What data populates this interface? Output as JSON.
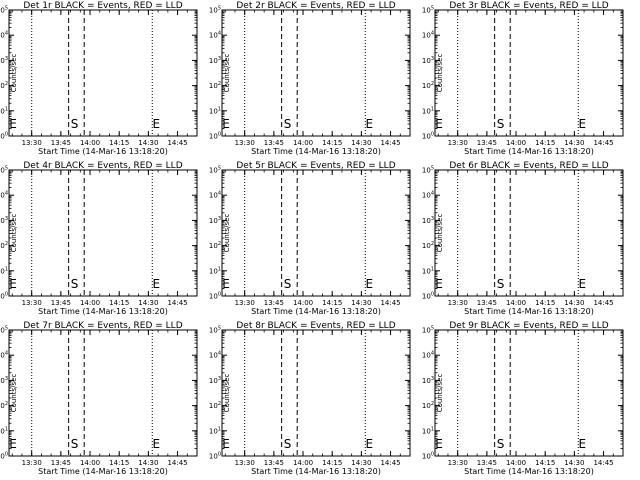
{
  "window": {
    "title": ""
  },
  "chart_data": [
    {
      "type": "line",
      "title": "Det 1r BLACK = Events, RED = LLD",
      "xlabel": "Start Time (14-Mar-16 13:18:20)",
      "ylabel": "Counts/sec",
      "x_ticks": [
        "13:30",
        "13:45",
        "14:00",
        "14:15",
        "14:30",
        "14:45"
      ],
      "y_ticks": [
        "10^0",
        "10^1",
        "10^2",
        "10^3",
        "10^4",
        "10^5"
      ],
      "ylim": [
        1,
        100000
      ],
      "xlim": [
        "13:18:20",
        "14:55"
      ],
      "y_scale": "log",
      "series": [],
      "vlines": {
        "dotted": [
          "13:30",
          "14:32",
          "14:55"
        ],
        "dashed": [
          "13:49",
          "13:57"
        ]
      },
      "markers": [
        {
          "text": "E",
          "x": "13:18:20"
        },
        {
          "text": "S",
          "x": "13:50"
        },
        {
          "text": "E",
          "x": "14:32"
        }
      ]
    },
    {
      "type": "line",
      "title": "Det 2r BLACK = Events, RED = LLD",
      "xlabel": "Start Time (14-Mar-16 13:18:20)",
      "ylabel": "Counts/sec",
      "x_ticks": [
        "13:30",
        "13:45",
        "14:00",
        "14:15",
        "14:30",
        "14:45"
      ],
      "y_ticks": [
        "10^0",
        "10^1",
        "10^2",
        "10^3",
        "10^4",
        "10^5"
      ],
      "ylim": [
        1,
        100000
      ],
      "xlim": [
        "13:18:20",
        "14:55"
      ],
      "y_scale": "log",
      "series": [],
      "vlines": {
        "dotted": [
          "13:30",
          "14:32",
          "14:55"
        ],
        "dashed": [
          "13:49",
          "13:57"
        ]
      },
      "markers": [
        {
          "text": "E",
          "x": "13:18:20"
        },
        {
          "text": "S",
          "x": "13:50"
        },
        {
          "text": "E",
          "x": "14:32"
        }
      ]
    },
    {
      "type": "line",
      "title": "Det 3r BLACK = Events, RED = LLD",
      "xlabel": "Start Time (14-Mar-16 13:18:20)",
      "ylabel": "Counts/sec",
      "x_ticks": [
        "13:30",
        "13:45",
        "14:00",
        "14:15",
        "14:30",
        "14:45"
      ],
      "y_ticks": [
        "10^0",
        "10^1",
        "10^2",
        "10^3",
        "10^4",
        "10^5"
      ],
      "ylim": [
        1,
        100000
      ],
      "xlim": [
        "13:18:20",
        "14:55"
      ],
      "y_scale": "log",
      "series": [],
      "vlines": {
        "dotted": [
          "13:30",
          "14:32",
          "14:55"
        ],
        "dashed": [
          "13:49",
          "13:57"
        ]
      },
      "markers": [
        {
          "text": "E",
          "x": "13:18:20"
        },
        {
          "text": "S",
          "x": "13:50"
        },
        {
          "text": "E",
          "x": "14:32"
        }
      ]
    },
    {
      "type": "line",
      "title": "Det 4r BLACK = Events, RED = LLD",
      "xlabel": "Start Time (14-Mar-16 13:18:20)",
      "ylabel": "Counts/sec",
      "x_ticks": [
        "13:30",
        "13:45",
        "14:00",
        "14:15",
        "14:30",
        "14:45"
      ],
      "y_ticks": [
        "10^0",
        "10^1",
        "10^2",
        "10^3",
        "10^4",
        "10^5"
      ],
      "ylim": [
        1,
        100000
      ],
      "xlim": [
        "13:18:20",
        "14:55"
      ],
      "y_scale": "log",
      "series": [],
      "vlines": {
        "dotted": [
          "13:30",
          "14:32",
          "14:55"
        ],
        "dashed": [
          "13:49",
          "13:57"
        ]
      },
      "markers": [
        {
          "text": "E",
          "x": "13:18:20"
        },
        {
          "text": "S",
          "x": "13:50"
        },
        {
          "text": "E",
          "x": "14:32"
        }
      ]
    },
    {
      "type": "line",
      "title": "Det 5r BLACK = Events, RED = LLD",
      "xlabel": "Start Time (14-Mar-16 13:18:20)",
      "ylabel": "Counts/sec",
      "x_ticks": [
        "13:30",
        "13:45",
        "14:00",
        "14:15",
        "14:30",
        "14:45"
      ],
      "y_ticks": [
        "10^0",
        "10^1",
        "10^2",
        "10^3",
        "10^4",
        "10^5"
      ],
      "ylim": [
        1,
        100000
      ],
      "xlim": [
        "13:18:20",
        "14:55"
      ],
      "y_scale": "log",
      "series": [],
      "vlines": {
        "dotted": [
          "13:30",
          "14:32",
          "14:55"
        ],
        "dashed": [
          "13:49",
          "13:57"
        ]
      },
      "markers": [
        {
          "text": "E",
          "x": "13:18:20"
        },
        {
          "text": "S",
          "x": "13:50"
        },
        {
          "text": "E",
          "x": "14:32"
        }
      ]
    },
    {
      "type": "line",
      "title": "Det 6r BLACK = Events, RED = LLD",
      "xlabel": "Start Time (14-Mar-16 13:18:20)",
      "ylabel": "Counts/sec",
      "x_ticks": [
        "13:30",
        "13:45",
        "14:00",
        "14:15",
        "14:30",
        "14:45"
      ],
      "y_ticks": [
        "10^0",
        "10^1",
        "10^2",
        "10^3",
        "10^4",
        "10^5"
      ],
      "ylim": [
        1,
        100000
      ],
      "xlim": [
        "13:18:20",
        "14:55"
      ],
      "y_scale": "log",
      "series": [],
      "vlines": {
        "dotted": [
          "13:30",
          "14:32",
          "14:55"
        ],
        "dashed": [
          "13:49",
          "13:57"
        ]
      },
      "markers": [
        {
          "text": "E",
          "x": "13:18:20"
        },
        {
          "text": "S",
          "x": "13:50"
        },
        {
          "text": "E",
          "x": "14:32"
        }
      ]
    },
    {
      "type": "line",
      "title": "Det 7r BLACK = Events, RED = LLD",
      "xlabel": "Start Time (14-Mar-16 13:18:20)",
      "ylabel": "Counts/sec",
      "x_ticks": [
        "13:30",
        "13:45",
        "14:00",
        "14:15",
        "14:30",
        "14:45"
      ],
      "y_ticks": [
        "10^0",
        "10^1",
        "10^2",
        "10^3",
        "10^4",
        "10^5"
      ],
      "ylim": [
        1,
        100000
      ],
      "xlim": [
        "13:18:20",
        "14:55"
      ],
      "y_scale": "log",
      "series": [],
      "vlines": {
        "dotted": [
          "13:30",
          "14:32",
          "14:55"
        ],
        "dashed": [
          "13:49",
          "13:57"
        ]
      },
      "markers": [
        {
          "text": "E",
          "x": "13:18:20"
        },
        {
          "text": "S",
          "x": "13:50"
        },
        {
          "text": "E",
          "x": "14:32"
        }
      ]
    },
    {
      "type": "line",
      "title": "Det 8r BLACK = Events, RED = LLD",
      "xlabel": "Start Time (14-Mar-16 13:18:20)",
      "ylabel": "Counts/sec",
      "x_ticks": [
        "13:30",
        "13:45",
        "14:00",
        "14:15",
        "14:30",
        "14:45"
      ],
      "y_ticks": [
        "10^0",
        "10^1",
        "10^2",
        "10^3",
        "10^4",
        "10^5"
      ],
      "ylim": [
        1,
        100000
      ],
      "xlim": [
        "13:18:20",
        "14:55"
      ],
      "y_scale": "log",
      "series": [],
      "vlines": {
        "dotted": [
          "13:30",
          "14:32",
          "14:55"
        ],
        "dashed": [
          "13:49",
          "13:57"
        ]
      },
      "markers": [
        {
          "text": "E",
          "x": "13:18:20"
        },
        {
          "text": "S",
          "x": "13:50"
        },
        {
          "text": "E",
          "x": "14:32"
        }
      ]
    },
    {
      "type": "line",
      "title": "Det 9r BLACK = Events, RED = LLD",
      "xlabel": "Start Time (14-Mar-16 13:18:20)",
      "ylabel": "Counts/sec",
      "x_ticks": [
        "13:30",
        "13:45",
        "14:00",
        "14:15",
        "14:30",
        "14:45"
      ],
      "y_ticks": [
        "10^0",
        "10^1",
        "10^2",
        "10^3",
        "10^4",
        "10^5"
      ],
      "ylim": [
        1,
        100000
      ],
      "xlim": [
        "13:18:20",
        "14:55"
      ],
      "y_scale": "log",
      "series": [],
      "vlines": {
        "dotted": [
          "13:30",
          "14:32",
          "14:55"
        ],
        "dashed": [
          "13:49",
          "13:57"
        ]
      },
      "markers": [
        {
          "text": "E",
          "x": "13:18:20"
        },
        {
          "text": "S",
          "x": "13:50"
        },
        {
          "text": "E",
          "x": "14:32"
        }
      ]
    }
  ],
  "colors": {
    "background": "#ffffff",
    "axes": "#000000",
    "events": "#000000",
    "lld": "#ff0000"
  }
}
